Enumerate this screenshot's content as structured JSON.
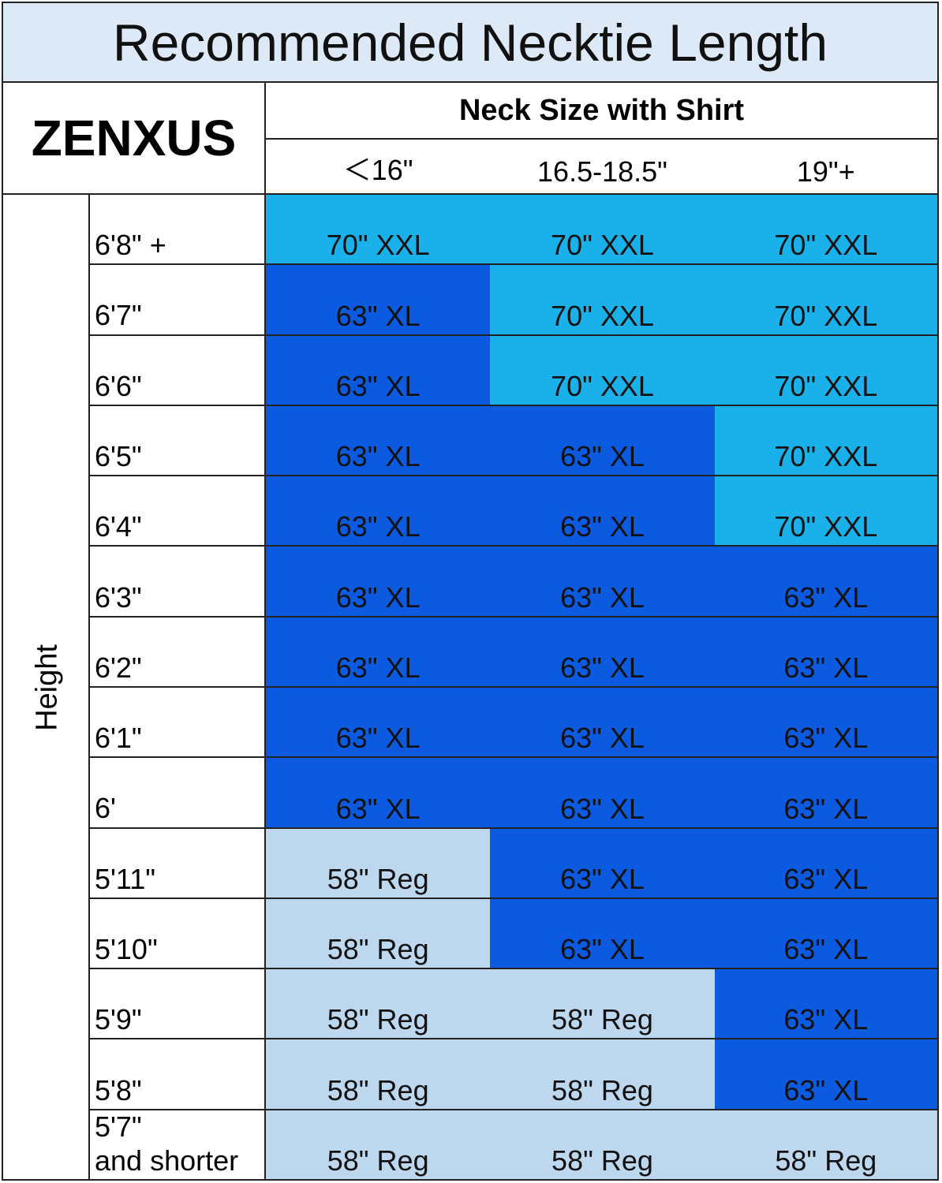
{
  "header": {
    "title": "Recommended Necktie Length",
    "brand": "ZENXUS",
    "group_label": "Neck Size with Shirt",
    "row_group_label": "Height"
  },
  "table": {
    "columns": [
      "＜16\"",
      "16.5-18.5\"",
      "19\"+"
    ],
    "rows": [
      {
        "label": "6'8\" +",
        "cells": [
          {
            "text": "70\" XXL",
            "color": "#1ab0ea"
          },
          {
            "text": "70\" XXL",
            "color": "#1ab0ea"
          },
          {
            "text": "70\" XXL",
            "color": "#1ab0ea"
          }
        ]
      },
      {
        "label": "6'7\"",
        "cells": [
          {
            "text": "63\" XL",
            "color": "#0b5ae0"
          },
          {
            "text": "70\" XXL",
            "color": "#1ab0ea"
          },
          {
            "text": "70\" XXL",
            "color": "#1ab0ea"
          }
        ]
      },
      {
        "label": "6'6\"",
        "cells": [
          {
            "text": "63\" XL",
            "color": "#0b5ae0"
          },
          {
            "text": "70\" XXL",
            "color": "#1ab0ea"
          },
          {
            "text": "70\" XXL",
            "color": "#1ab0ea"
          }
        ]
      },
      {
        "label": "6'5\"",
        "cells": [
          {
            "text": "63\" XL",
            "color": "#0b5ae0"
          },
          {
            "text": "63\" XL",
            "color": "#0b5ae0"
          },
          {
            "text": "70\" XXL",
            "color": "#1ab0ea"
          }
        ]
      },
      {
        "label": "6'4\"",
        "cells": [
          {
            "text": "63\" XL",
            "color": "#0b5ae0"
          },
          {
            "text": "63\" XL",
            "color": "#0b5ae0"
          },
          {
            "text": "70\" XXL",
            "color": "#1ab0ea"
          }
        ]
      },
      {
        "label": "6'3\"",
        "cells": [
          {
            "text": "63\" XL",
            "color": "#0b5ae0"
          },
          {
            "text": "63\" XL",
            "color": "#0b5ae0"
          },
          {
            "text": "63\" XL",
            "color": "#0b5ae0"
          }
        ]
      },
      {
        "label": "6'2\"",
        "cells": [
          {
            "text": "63\" XL",
            "color": "#0b5ae0"
          },
          {
            "text": "63\" XL",
            "color": "#0b5ae0"
          },
          {
            "text": "63\" XL",
            "color": "#0b5ae0"
          }
        ]
      },
      {
        "label": "6'1\"",
        "cells": [
          {
            "text": "63\" XL",
            "color": "#0b5ae0"
          },
          {
            "text": "63\" XL",
            "color": "#0b5ae0"
          },
          {
            "text": "63\" XL",
            "color": "#0b5ae0"
          }
        ]
      },
      {
        "label": "6'",
        "cells": [
          {
            "text": "63\" XL",
            "color": "#0b5ae0"
          },
          {
            "text": "63\" XL",
            "color": "#0b5ae0"
          },
          {
            "text": "63\" XL",
            "color": "#0b5ae0"
          }
        ]
      },
      {
        "label": "5'11\"",
        "cells": [
          {
            "text": "58\" Reg",
            "color": "#bdd7ee"
          },
          {
            "text": "63\" XL",
            "color": "#0b5ae0"
          },
          {
            "text": "63\" XL",
            "color": "#0b5ae0"
          }
        ]
      },
      {
        "label": "5'10\"",
        "cells": [
          {
            "text": "58\" Reg",
            "color": "#bdd7ee"
          },
          {
            "text": "63\" XL",
            "color": "#0b5ae0"
          },
          {
            "text": "63\" XL",
            "color": "#0b5ae0"
          }
        ]
      },
      {
        "label": "5'9\"",
        "cells": [
          {
            "text": "58\" Reg",
            "color": "#bdd7ee"
          },
          {
            "text": "58\" Reg",
            "color": "#bdd7ee"
          },
          {
            "text": "63\" XL",
            "color": "#0b5ae0"
          }
        ]
      },
      {
        "label": "5'8\"",
        "cells": [
          {
            "text": "58\" Reg",
            "color": "#bdd7ee"
          },
          {
            "text": "58\" Reg",
            "color": "#bdd7ee"
          },
          {
            "text": "63\" XL",
            "color": "#0b5ae0"
          }
        ]
      },
      {
        "label": "5'7\"\nand shorter",
        "cells": [
          {
            "text": "58\" Reg",
            "color": "#bdd7ee"
          },
          {
            "text": "58\" Reg",
            "color": "#bdd7ee"
          },
          {
            "text": "58\" Reg",
            "color": "#bdd7ee"
          }
        ]
      }
    ]
  }
}
